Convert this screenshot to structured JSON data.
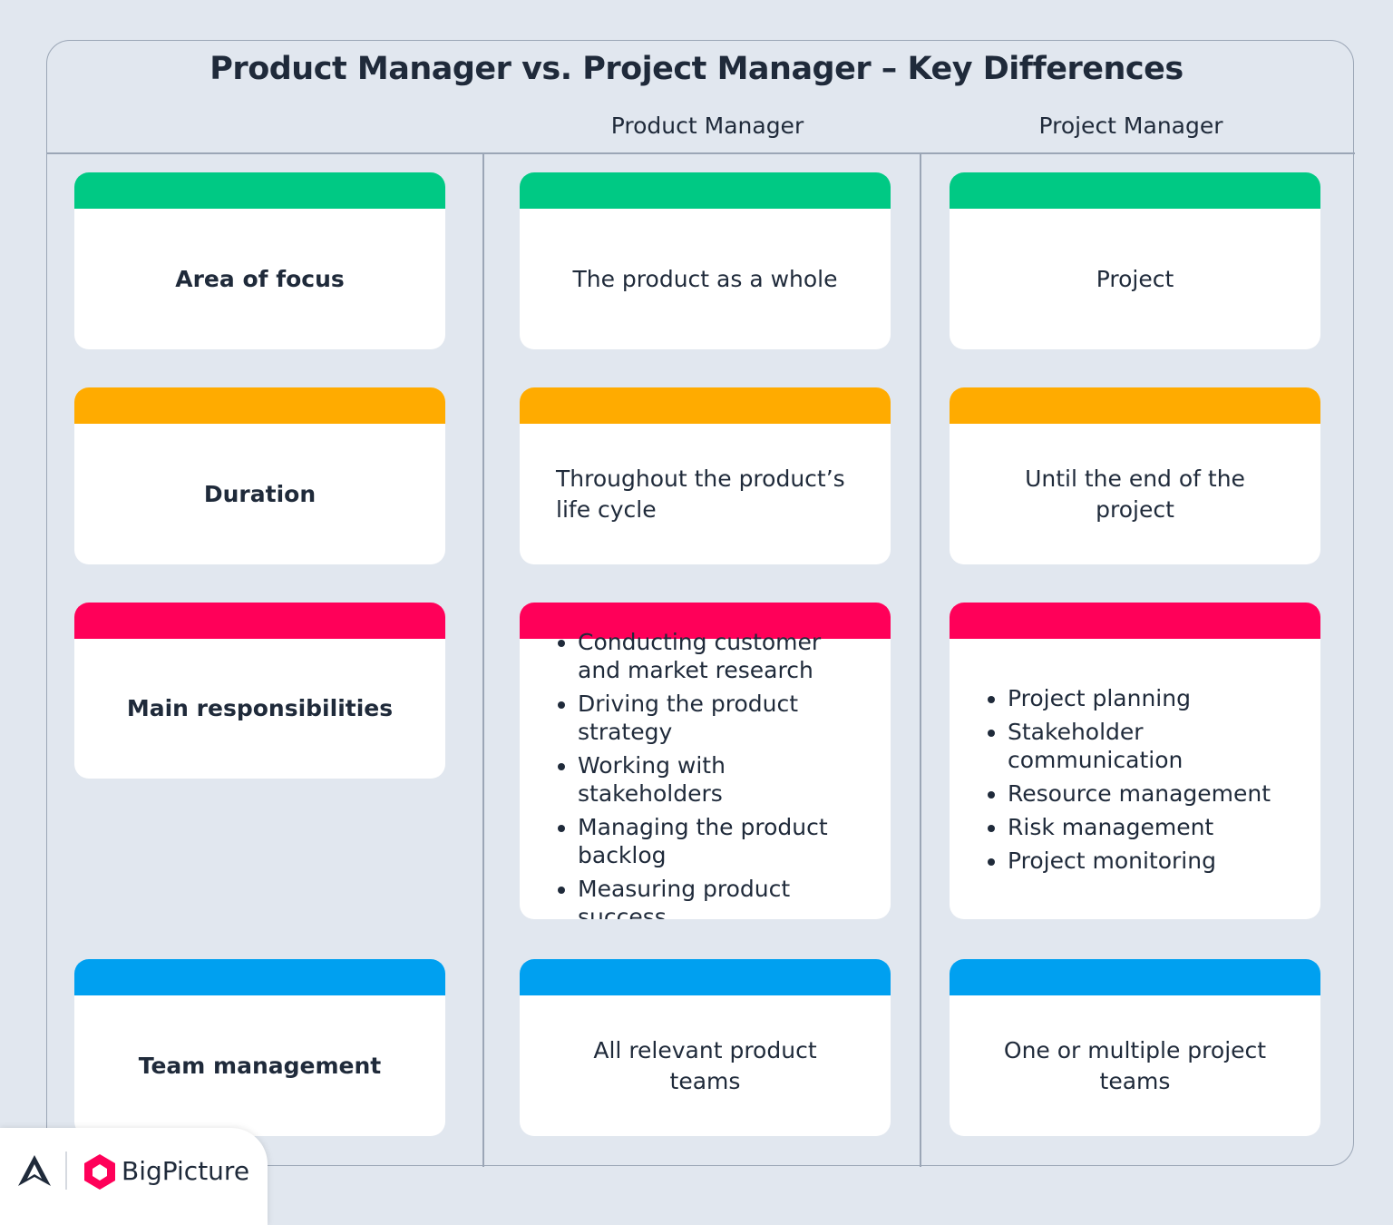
{
  "header": {
    "title": "Product Manager vs. Project Manager – Key Differences",
    "columns": [
      "Product Manager",
      "Project Manager"
    ]
  },
  "rows": [
    {
      "label": "Area of focus",
      "color": "#00c984",
      "product": "The product as a whole",
      "project": "Project"
    },
    {
      "label": "Duration",
      "color": "#ffab00",
      "product": "Throughout the product’s life cycle",
      "project": "Until the end of the project"
    },
    {
      "label": "Main responsibilities",
      "color": "#ff0059",
      "product": [
        "Conducting customer and market research",
        "Driving the product strategy",
        "Working with stakeholders",
        "Managing the product backlog",
        "Measuring product success"
      ],
      "project": [
        "Project planning",
        "Stakeholder communication",
        "Resource management",
        "Risk management",
        "Project monitoring"
      ]
    },
    {
      "label": "Team management",
      "color": "#00a0f0",
      "product": "All relevant product teams",
      "project": "One or multiple project teams"
    }
  ],
  "brand": {
    "name": "BigPicture"
  }
}
